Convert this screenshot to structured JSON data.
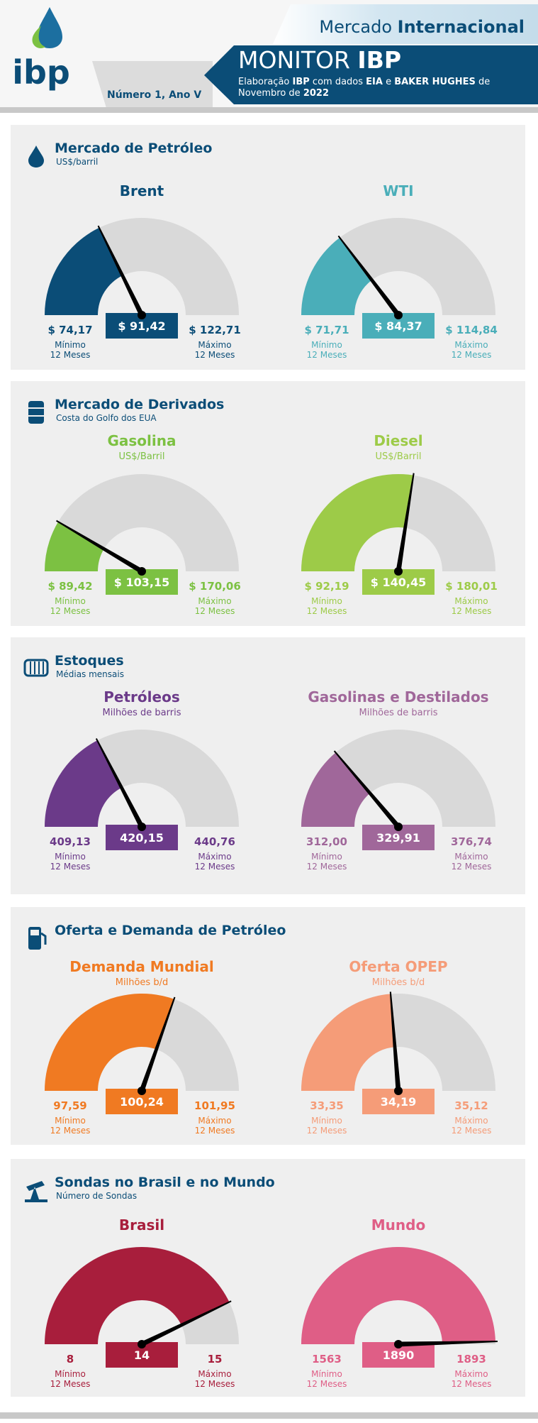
{
  "header": {
    "logo": "ibp",
    "kicker": [
      "Mercado ",
      "Internacional"
    ],
    "title": [
      "MONITOR ",
      "IBP"
    ],
    "description": [
      [
        "Elaboração ",
        "IBP",
        " com dados ",
        "EIA",
        " e ",
        "BAKER HUGHES",
        " de"
      ],
      [
        "Novembro de ",
        "2022"
      ]
    ],
    "issue": "Número 1, Ano V"
  },
  "captions": {
    "min": "Mínimo",
    "max": "Máximo",
    "period": "12 Meses"
  },
  "sections": [
    {
      "title": "Mercado de Petróleo",
      "subtitle": "US$/barril",
      "gauges": [
        {
          "title": "Brent",
          "color": "#0b4d77",
          "min": 74.17,
          "min_label": "$ 74,17",
          "value": 91.42,
          "value_label": "$ 91,42",
          "max": 122.71,
          "max_label": "$ 122,71"
        },
        {
          "title": "WTI",
          "color": "#4aaeb9",
          "min": 71.71,
          "min_label": "$ 71,71",
          "value": 84.37,
          "value_label": "$ 84,37",
          "max": 114.84,
          "max_label": "$ 114,84"
        }
      ]
    },
    {
      "title": "Mercado de Derivados",
      "subtitle": "Costa do Golfo dos EUA",
      "gauges": [
        {
          "title": "Gasolina",
          "subtitle": "US$/Barril",
          "color": "#7cc142",
          "min": 89.42,
          "min_label": "$ 89,42",
          "value": 103.15,
          "value_label": "$ 103,15",
          "max": 170.06,
          "max_label": "$ 170,06"
        },
        {
          "title": "Diesel",
          "subtitle": "US$/Barril",
          "color": "#9dcb48",
          "min": 92.19,
          "min_label": "$ 92,19",
          "value": 140.45,
          "value_label": "$ 140,45",
          "max": 180.01,
          "max_label": "$ 180,01"
        }
      ]
    },
    {
      "title": "Estoques",
      "subtitle": "Médias mensais",
      "gauges": [
        {
          "title": "Petróleos",
          "subtitle": "Milhões de barris",
          "color": "#6b3a89",
          "min": 409.13,
          "min_label": "409,13",
          "value": 420.15,
          "value_label": "420,15",
          "max": 440.76,
          "max_label": "440,76"
        },
        {
          "title": "Gasolinas e Destilados",
          "subtitle": "Milhões de barris",
          "color": "#a0679a",
          "min": 312.0,
          "min_label": "312,00",
          "value": 329.91,
          "value_label": "329,91",
          "max": 376.74,
          "max_label": "376,74"
        }
      ]
    },
    {
      "title": "Oferta e Demanda de Petróleo",
      "gauges": [
        {
          "title": "Demanda Mundial",
          "subtitle": "Milhões b/d",
          "color": "#f07a22",
          "min": 97.59,
          "min_label": "97,59",
          "value": 100.24,
          "value_label": "100,24",
          "max": 101.95,
          "max_label": "101,95"
        },
        {
          "title": "Oferta OPEP",
          "subtitle": "Milhões b/d",
          "color": "#f59c78",
          "min": 33.35,
          "min_label": "33,35",
          "value": 34.19,
          "value_label": "34,19",
          "max": 35.12,
          "max_label": "35,12"
        }
      ]
    },
    {
      "title": "Sondas no Brasil e no Mundo",
      "subtitle": "Número de Sondas",
      "gauges": [
        {
          "title": "Brasil",
          "color": "#a81e3c",
          "min": 8,
          "value": 14,
          "max": 15
        },
        {
          "title": "Mundo",
          "color": "#df5e86",
          "min": 1563,
          "value": 1890,
          "max": 1893
        }
      ]
    }
  ]
}
